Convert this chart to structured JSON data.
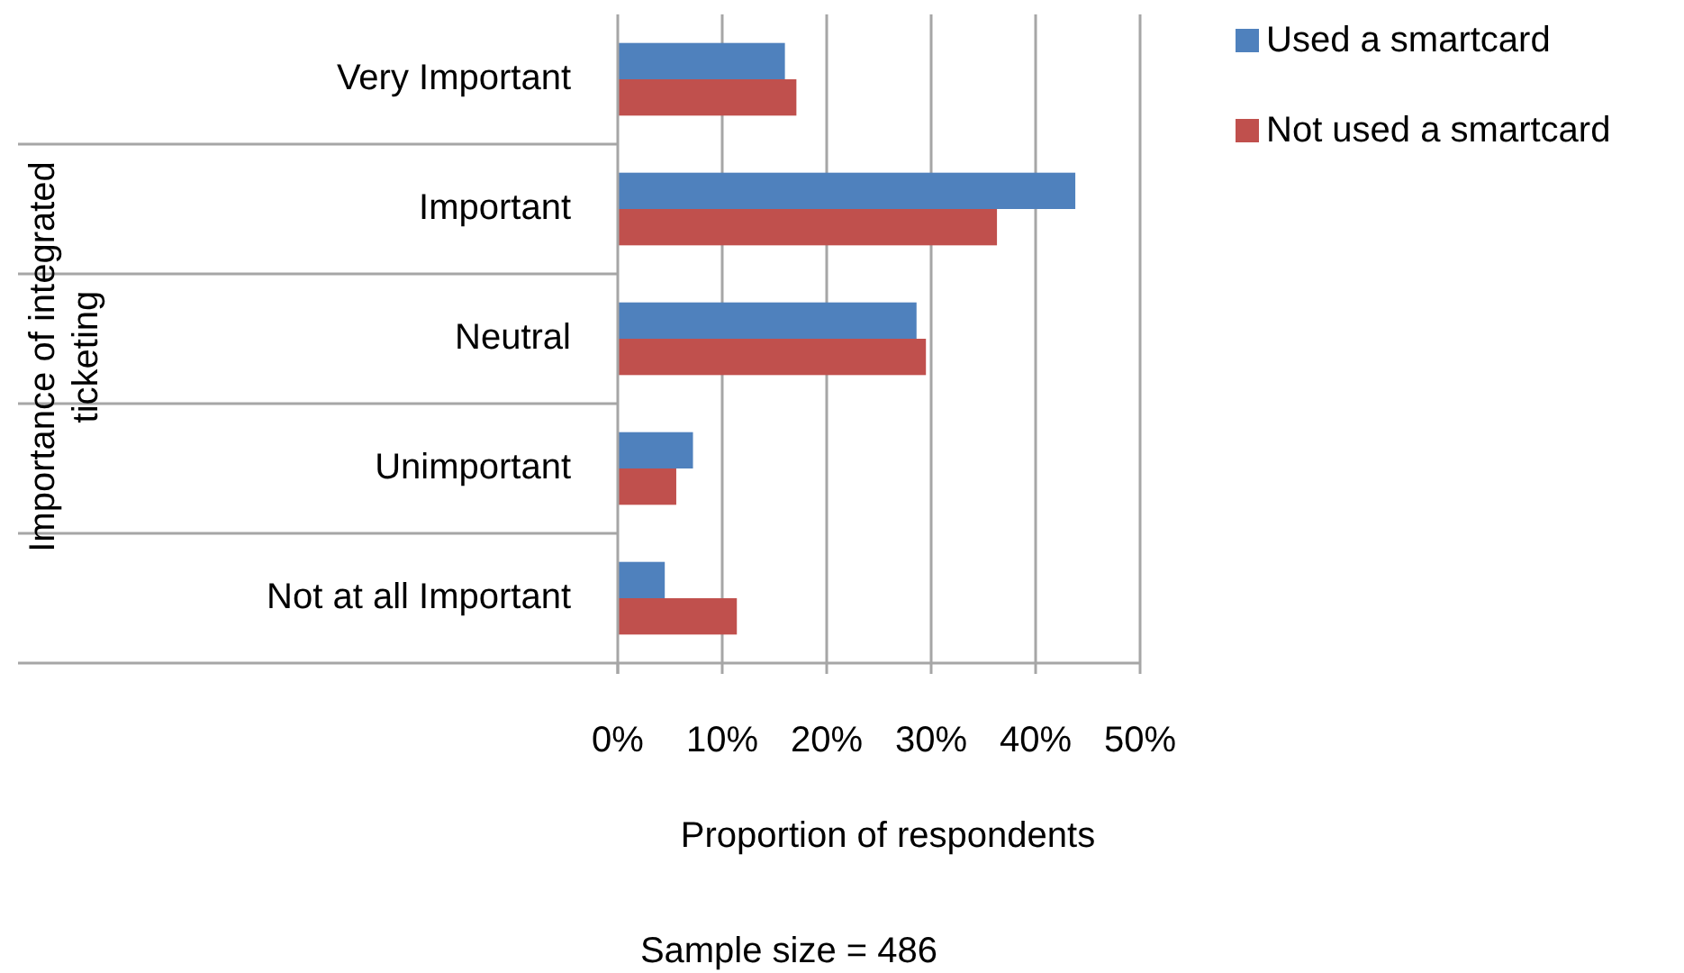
{
  "chart_data": {
    "type": "bar",
    "orientation": "horizontal",
    "ylabel": "Importance of integrated ticketing",
    "xlabel": "Proportion of respondents",
    "annotations": [
      "Sample size = 486"
    ],
    "categories": [
      "Very Important",
      "Important",
      "Neutral",
      "Unimportant",
      "Not at all Important"
    ],
    "series": [
      {
        "name": "Used a smartcard",
        "color": "#4f81bd",
        "values": [
          16.0,
          43.8,
          28.6,
          7.2,
          4.5
        ]
      },
      {
        "name": "Not used a smartcard",
        "color": "#c0504d",
        "values": [
          17.1,
          36.3,
          29.5,
          5.6,
          11.4
        ]
      }
    ],
    "xlim": [
      0,
      50
    ],
    "xticks": [
      {
        "value": 0,
        "label": "0%"
      },
      {
        "value": 10,
        "label": "10%"
      },
      {
        "value": 20,
        "label": "20%"
      },
      {
        "value": 30,
        "label": "30%"
      },
      {
        "value": 40,
        "label": "40%"
      },
      {
        "value": 50,
        "label": "50%"
      }
    ],
    "grid": "x",
    "legend": "top right"
  }
}
